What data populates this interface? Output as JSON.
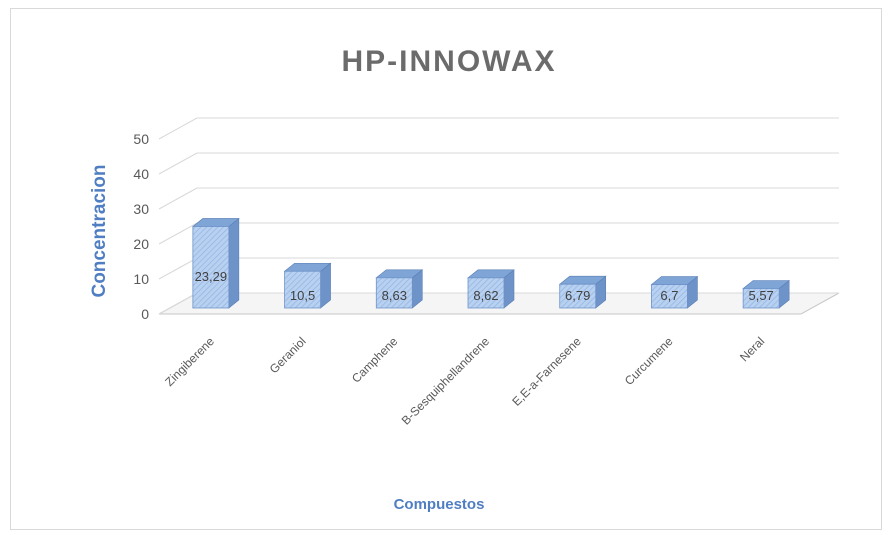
{
  "chart_data": {
    "type": "bar",
    "title": "HP-INNOWAX",
    "xlabel": "Compuestos",
    "ylabel": "Concentracion",
    "categories": [
      "Zingiberene",
      "Geraniol",
      "Camphene",
      "B-Sesquiphellandrene",
      "E,E-a-Farnesene",
      "Curcumene",
      "Neral"
    ],
    "values": [
      23.29,
      10.5,
      8.63,
      8.62,
      6.79,
      6.7,
      5.57
    ],
    "data_labels": [
      "23,29",
      "10,5",
      "8,63",
      "8,62",
      "6,79",
      "6,7",
      "5,57"
    ],
    "y_ticks": [
      "0",
      "10",
      "20",
      "30",
      "40",
      "50"
    ],
    "ylim": [
      0,
      50
    ],
    "grid": true,
    "bar_color": "#a9c6ec",
    "bar_side_color": "#6e93c9",
    "bar_top_color": "#7fa5d6",
    "axis_title_color": "#4f7ec2"
  }
}
